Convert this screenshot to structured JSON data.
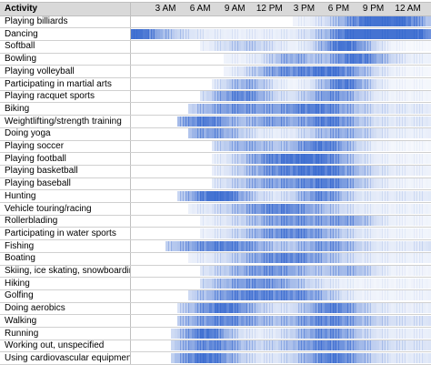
{
  "header": {
    "activity_label": "Activity",
    "time_ticks": [
      "3 AM",
      "6 AM",
      "9 AM",
      "12 PM",
      "3 PM",
      "6 PM",
      "9 PM",
      "12 AM"
    ]
  },
  "colors": {
    "cell_base": "#3a6bd0",
    "header_bg": "#d9d9d9",
    "grid": "#d0d0d0"
  },
  "chart_data": {
    "type": "heatmap",
    "title": "",
    "xlabel": "",
    "ylabel": "Activity",
    "x_start_hour": 0,
    "x_end_hour": 26,
    "x_ticks": [
      "3 AM",
      "6 AM",
      "9 AM",
      "12 PM",
      "3 PM",
      "6 PM",
      "9 PM",
      "12 AM"
    ],
    "x_tick_hours": [
      3,
      6,
      9,
      12,
      15,
      18,
      21,
      24
    ],
    "value_range": [
      0,
      1
    ],
    "rows": [
      {
        "name": "Playing billiards",
        "peaks": [
          [
            21,
            2.2,
            1.0
          ],
          [
            24,
            1.6,
            0.5
          ]
        ],
        "base": 0.08,
        "x_from": 14
      },
      {
        "name": "Dancing",
        "peaks": [
          [
            21.5,
            2.0,
            1.0
          ],
          [
            19,
            2.0,
            0.6
          ],
          [
            24,
            1.5,
            0.6
          ],
          [
            2,
            2,
            0.3
          ]
        ],
        "base": 0.12,
        "x_from": 0
      },
      {
        "name": "Softball",
        "peaks": [
          [
            18.5,
            1.6,
            1.0
          ],
          [
            10,
            2,
            0.3
          ]
        ],
        "base": 0.05,
        "x_from": 6
      },
      {
        "name": "Bowling",
        "peaks": [
          [
            19.5,
            1.8,
            0.9
          ],
          [
            14,
            1.5,
            0.5
          ]
        ],
        "base": 0.1,
        "x_from": 8
      },
      {
        "name": "Playing volleyball",
        "peaks": [
          [
            17.5,
            2.2,
            0.9
          ],
          [
            13,
            2.0,
            0.6
          ]
        ],
        "base": 0.06,
        "x_from": 8
      },
      {
        "name": "Participating in martial arts",
        "peaks": [
          [
            18.5,
            1.5,
            0.9
          ],
          [
            10,
            1.5,
            0.5
          ]
        ],
        "base": 0.06,
        "x_from": 7
      },
      {
        "name": "Playing racquet sports",
        "peaks": [
          [
            9.5,
            1.8,
            0.8
          ],
          [
            17.5,
            1.8,
            0.7
          ]
        ],
        "base": 0.08,
        "x_from": 6
      },
      {
        "name": "Biking",
        "peaks": [
          [
            9,
            2.5,
            0.6
          ],
          [
            16,
            2.5,
            0.8
          ]
        ],
        "base": 0.15,
        "x_from": 5
      },
      {
        "name": "Weightlifting/strength training",
        "peaks": [
          [
            6.5,
            1.8,
            0.8
          ],
          [
            17,
            2.0,
            0.8
          ],
          [
            12,
            1.5,
            0.5
          ]
        ],
        "base": 0.15,
        "x_from": 4
      },
      {
        "name": "Doing yoga",
        "peaks": [
          [
            7,
            2.0,
            0.6
          ],
          [
            18,
            2.0,
            0.5
          ]
        ],
        "base": 0.1,
        "x_from": 5
      },
      {
        "name": "Playing soccer",
        "peaks": [
          [
            16.5,
            2.0,
            0.9
          ],
          [
            10,
            2.0,
            0.5
          ]
        ],
        "base": 0.06,
        "x_from": 7
      },
      {
        "name": "Playing football",
        "peaks": [
          [
            16,
            2.2,
            0.9
          ],
          [
            12,
            2.0,
            0.6
          ]
        ],
        "base": 0.08,
        "x_from": 7
      },
      {
        "name": "Playing basketball",
        "peaks": [
          [
            16.5,
            2.5,
            0.9
          ],
          [
            12,
            2.0,
            0.5
          ]
        ],
        "base": 0.1,
        "x_from": 7
      },
      {
        "name": "Playing baseball",
        "peaks": [
          [
            17,
            2.2,
            0.8
          ],
          [
            12,
            2.5,
            0.5
          ]
        ],
        "base": 0.08,
        "x_from": 7
      },
      {
        "name": "Hunting",
        "peaks": [
          [
            7.5,
            1.8,
            1.0
          ],
          [
            16.5,
            1.5,
            0.7
          ]
        ],
        "base": 0.15,
        "x_from": 4
      },
      {
        "name": "Vehicle touring/racing",
        "peaks": [
          [
            13,
            3.0,
            0.8
          ]
        ],
        "base": 0.1,
        "x_from": 5
      },
      {
        "name": "Rollerblading",
        "peaks": [
          [
            14,
            3.0,
            0.7
          ],
          [
            19,
            1.5,
            0.4
          ]
        ],
        "base": 0.08,
        "x_from": 6
      },
      {
        "name": "Participating in water sports",
        "peaks": [
          [
            14,
            3.0,
            0.8
          ]
        ],
        "base": 0.08,
        "x_from": 6
      },
      {
        "name": "Fishing",
        "peaks": [
          [
            8,
            3.0,
            0.8
          ],
          [
            17,
            2.0,
            0.6
          ]
        ],
        "base": 0.12,
        "x_from": 3
      },
      {
        "name": "Boating",
        "peaks": [
          [
            13.5,
            3.0,
            0.8
          ]
        ],
        "base": 0.1,
        "x_from": 5
      },
      {
        "name": "Skiing, ice skating, snowboarding",
        "peaks": [
          [
            12,
            3.0,
            0.7
          ],
          [
            19,
            1.5,
            0.4
          ]
        ],
        "base": 0.08,
        "x_from": 6
      },
      {
        "name": "Hiking",
        "peaks": [
          [
            11,
            3.0,
            0.7
          ]
        ],
        "base": 0.08,
        "x_from": 6
      },
      {
        "name": "Golfing",
        "peaks": [
          [
            10,
            3.0,
            0.8
          ],
          [
            15,
            2.0,
            0.5
          ]
        ],
        "base": 0.08,
        "x_from": 5
      },
      {
        "name": "Doing aerobics",
        "peaks": [
          [
            8,
            2.0,
            0.9
          ],
          [
            17.5,
            1.8,
            0.8
          ]
        ],
        "base": 0.12,
        "x_from": 4
      },
      {
        "name": "Walking",
        "peaks": [
          [
            8,
            2.5,
            0.7
          ],
          [
            17,
            2.5,
            0.7
          ]
        ],
        "base": 0.18,
        "x_from": 4
      },
      {
        "name": "Running",
        "peaks": [
          [
            6.5,
            1.5,
            0.9
          ],
          [
            17,
            2.0,
            0.7
          ]
        ],
        "base": 0.12,
        "x_from": 3.5
      },
      {
        "name": "Working out, unspecified",
        "peaks": [
          [
            7,
            2.0,
            0.7
          ],
          [
            17,
            2.5,
            0.7
          ]
        ],
        "base": 0.18,
        "x_from": 3.5
      },
      {
        "name": "Using cardiovascular equipment",
        "peaks": [
          [
            6.5,
            1.8,
            0.9
          ],
          [
            17.5,
            2.0,
            0.8
          ]
        ],
        "base": 0.15,
        "x_from": 3.5
      }
    ]
  }
}
